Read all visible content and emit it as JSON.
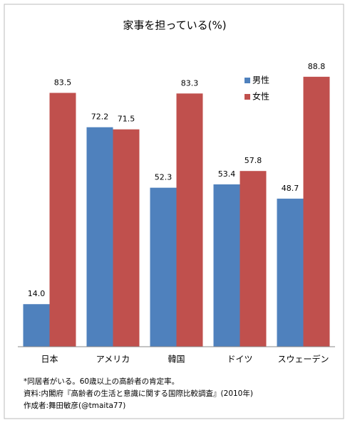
{
  "chart_data": {
    "type": "bar",
    "title": "家事を担っている(%)",
    "categories": [
      "日本",
      "アメリカ",
      "韓国",
      "ドイツ",
      "スウェーデン"
    ],
    "series": [
      {
        "name": "男性",
        "color": "#4f81bd",
        "values": [
          14.0,
          72.2,
          52.3,
          53.4,
          48.7
        ],
        "value_labels": [
          "14.0",
          "72.2",
          "52.3",
          "53.4",
          "48.7"
        ]
      },
      {
        "name": "女性",
        "color": "#c0504d",
        "values": [
          83.5,
          71.5,
          83.3,
          57.8,
          88.8
        ],
        "value_labels": [
          "83.5",
          "71.5",
          "83.3",
          "57.8",
          "88.8"
        ]
      }
    ],
    "ylim": [
      0,
      100
    ],
    "notes": [
      "*同居者がいる。60歳以上の高齢者の肯定率。",
      "資料:内閣府『高齢者の生活と意識に関する国際比較調査』(2010年)",
      "作成者:舞田敏彦(@tmaita77)"
    ]
  }
}
